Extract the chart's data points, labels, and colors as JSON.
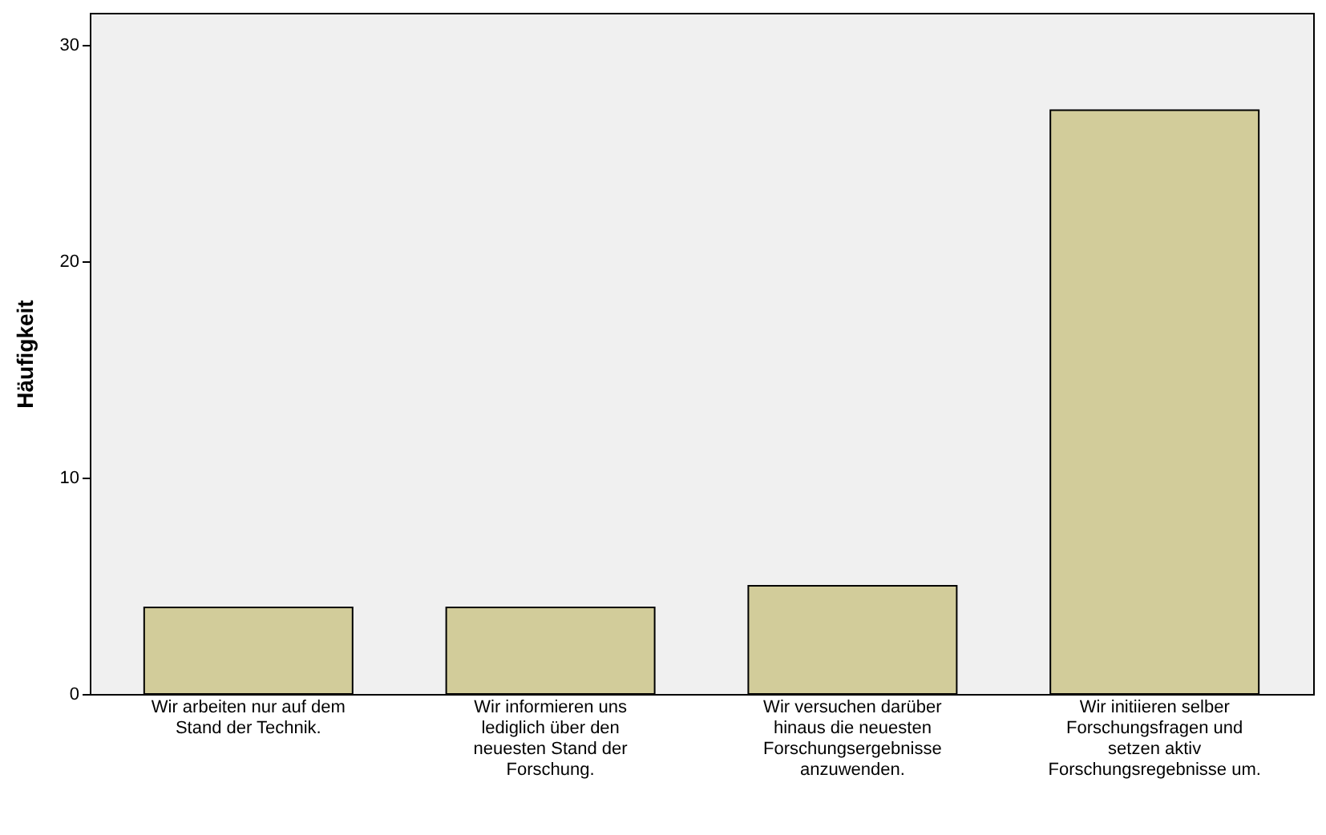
{
  "chart_data": {
    "type": "bar",
    "ylabel": "Häufigkeit",
    "categories": [
      "Wir arbeiten nur auf dem Stand der Technik.",
      "Wir informieren uns lediglich über den neuesten Stand der Forschung.",
      "Wir versuchen darüber hinaus die neuesten Forschungsergebnisse anzuwenden.",
      "Wir initiieren selber Forschungsfragen und setzen aktiv Forschungsregebnisse um."
    ],
    "values": [
      4,
      4,
      5,
      27
    ],
    "color": "#d2cc9a",
    "ylim": [
      0,
      31.5
    ],
    "yticks": [
      0,
      10,
      20,
      30
    ],
    "grid": false
  }
}
